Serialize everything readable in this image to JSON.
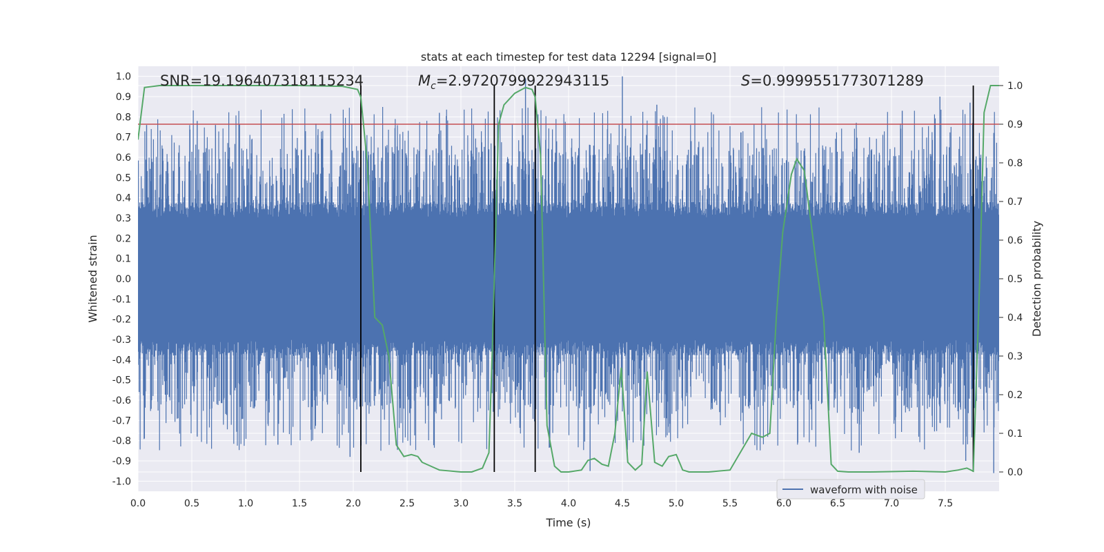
{
  "chart_data": {
    "type": "line",
    "title": "stats at each timestep for test data 12294 [signal=0]",
    "xlabel": "Time (s)",
    "ylabel_left": "Whitened strain",
    "ylabel_right": "Detection probability",
    "xlim": [
      0.0,
      8.0
    ],
    "ylim_left": [
      -1.05,
      1.05
    ],
    "ylim_right": [
      -0.05,
      1.05
    ],
    "x_ticks": [
      "0.0",
      "0.5",
      "1.0",
      "1.5",
      "2.0",
      "2.5",
      "3.0",
      "3.5",
      "4.0",
      "4.5",
      "5.0",
      "5.5",
      "6.0",
      "6.5",
      "7.0",
      "7.5"
    ],
    "y_ticks_left": [
      "1.0",
      "0.9",
      "0.8",
      "0.7",
      "0.6",
      "0.5",
      "0.4",
      "0.3",
      "0.2",
      "0.1",
      "0.0",
      "-0.1",
      "-0.2",
      "-0.3",
      "-0.4",
      "-0.5",
      "-0.6",
      "-0.7",
      "-0.8",
      "-0.9",
      "-1.0"
    ],
    "y_ticks_right": [
      "1.0",
      "0.9",
      "0.8",
      "0.7",
      "0.6",
      "0.5",
      "0.4",
      "0.3",
      "0.2",
      "0.1",
      "0.0"
    ],
    "annotations": {
      "snr": "SNR=19.196407318115234",
      "mc_symbol": "M",
      "mc_subscript": "c",
      "mc_value": "=2.9720799922943115",
      "s_symbol": "S",
      "s_value": "=0.9999551773071289"
    },
    "legend": {
      "label": "waveform with noise",
      "placement": "lower-right"
    },
    "threshold": 0.9,
    "vertical_markers": [
      2.07,
      3.31,
      3.69,
      7.76
    ],
    "waveform": {
      "name": "waveform with noise",
      "color": "#4c72b0",
      "duration": 8.0,
      "core_amplitude": 0.3,
      "notable_spikes": [
        {
          "t": 0.08,
          "v": 0.76
        },
        {
          "t": 0.55,
          "v": 0.78
        },
        {
          "t": 0.72,
          "v": 0.76
        },
        {
          "t": 2.8,
          "v": 0.82
        },
        {
          "t": 3.6,
          "v": 0.99
        },
        {
          "t": 4.5,
          "v": 1.0
        },
        {
          "t": 4.82,
          "v": 0.86
        },
        {
          "t": 7.1,
          "v": 0.83
        },
        {
          "t": 7.45,
          "v": 0.9
        },
        {
          "t": 7.73,
          "v": 0.87
        },
        {
          "t": 0.55,
          "v": -0.78
        },
        {
          "t": 1.3,
          "v": -0.82
        },
        {
          "t": 1.97,
          "v": -0.88
        },
        {
          "t": 4.2,
          "v": -0.95
        },
        {
          "t": 7.69,
          "v": -0.9
        },
        {
          "t": 7.95,
          "v": -0.96
        },
        {
          "t": 6.7,
          "v": -0.86
        }
      ]
    },
    "probability": {
      "name": "Detection probability",
      "color": "#55a868",
      "x": [
        0.0,
        0.06,
        0.2,
        0.5,
        1.0,
        1.5,
        1.9,
        2.04,
        2.07,
        2.13,
        2.2,
        2.27,
        2.33,
        2.4,
        2.47,
        2.54,
        2.6,
        2.64,
        2.8,
        3.0,
        3.1,
        3.2,
        3.26,
        3.29,
        3.31,
        3.35,
        3.4,
        3.5,
        3.6,
        3.66,
        3.69,
        3.74,
        3.8,
        3.87,
        3.93,
        4.0,
        4.12,
        4.18,
        4.24,
        4.31,
        4.37,
        4.43,
        4.49,
        4.55,
        4.62,
        4.68,
        4.73,
        4.8,
        4.87,
        4.93,
        5.0,
        5.06,
        5.12,
        5.2,
        5.3,
        5.5,
        5.7,
        5.8,
        5.87,
        5.93,
        5.99,
        6.07,
        6.12,
        6.19,
        6.25,
        6.3,
        6.37,
        6.44,
        6.5,
        6.6,
        6.8,
        7.2,
        7.5,
        7.62,
        7.7,
        7.76,
        7.82,
        7.86,
        7.92,
        8.0
      ],
      "values": [
        0.86,
        0.995,
        1.0,
        1.0,
        1.0,
        1.0,
        0.998,
        0.99,
        0.97,
        0.8,
        0.4,
        0.38,
        0.3,
        0.07,
        0.04,
        0.045,
        0.04,
        0.025,
        0.005,
        0.0,
        0.0,
        0.01,
        0.05,
        0.3,
        0.5,
        0.9,
        0.95,
        0.98,
        0.995,
        0.99,
        0.97,
        0.82,
        0.12,
        0.015,
        0.0,
        0.0,
        0.005,
        0.03,
        0.035,
        0.02,
        0.015,
        0.1,
        0.27,
        0.025,
        0.005,
        0.02,
        0.26,
        0.025,
        0.015,
        0.04,
        0.045,
        0.005,
        0.0,
        0.0,
        0.0,
        0.005,
        0.1,
        0.09,
        0.1,
        0.4,
        0.62,
        0.77,
        0.81,
        0.78,
        0.65,
        0.54,
        0.4,
        0.02,
        0.002,
        0.0,
        0.0,
        0.002,
        0.0,
        0.005,
        0.01,
        0.002,
        0.5,
        0.93,
        1.0,
        1.0
      ]
    },
    "threshold_color": "#c44e52",
    "marker_color": "#000000"
  }
}
